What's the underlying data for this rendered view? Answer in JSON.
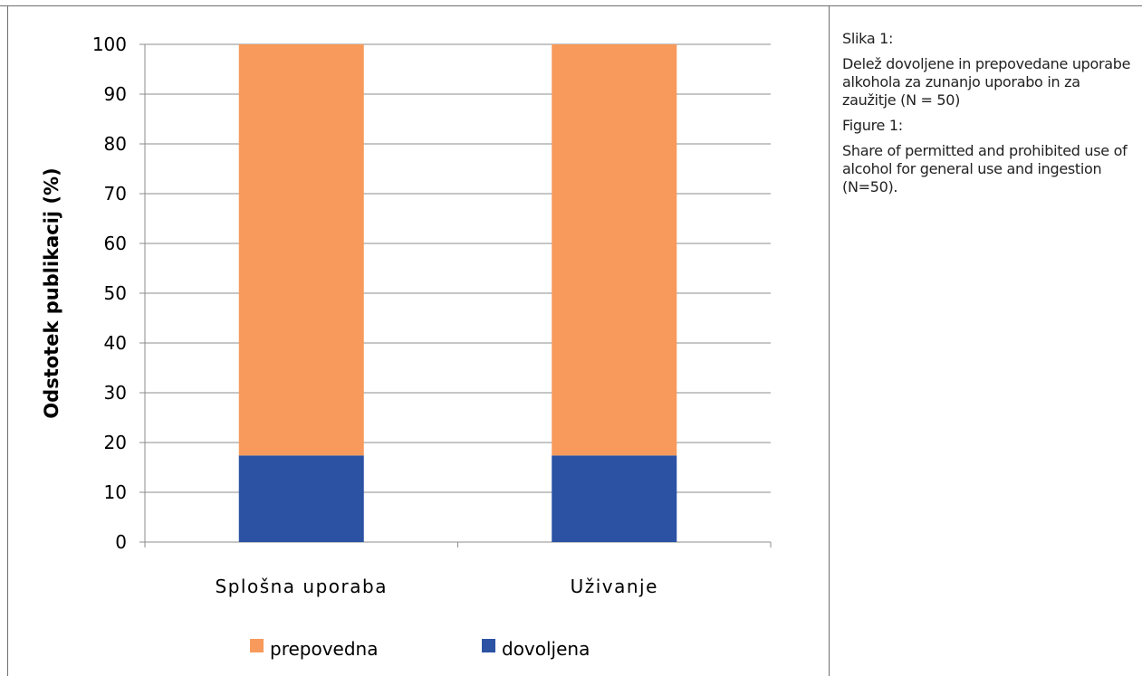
{
  "chart_data": {
    "type": "bar",
    "stacked": true,
    "categories": [
      "Splošna uporaba",
      "Uživanje"
    ],
    "series": [
      {
        "name": "dovoljena",
        "values": [
          17.4,
          17.4
        ],
        "color": "#2B52A3"
      },
      {
        "name": "prepovedna",
        "values": [
          82.6,
          82.6
        ],
        "color": "#F79A5C"
      }
    ],
    "ylabel": "Odstotek publikacij (%)",
    "xlabel": "",
    "ylim": [
      0,
      100
    ],
    "yticks": [
      0,
      10,
      20,
      30,
      40,
      50,
      60,
      70,
      80,
      90,
      100
    ],
    "grid": true,
    "legend_position": "bottom",
    "legend_order": [
      "prepovedna",
      "dovoljena"
    ]
  },
  "caption": {
    "label_sl": "Slika 1:",
    "text_sl": "Delež dovoljene in prepovedane uporabe alkohola za zunanjo uporabo in za zaužitje (N = 50)",
    "label_en": "Figure 1:",
    "text_en": "Share of permitted and prohibited use of alcohol for general use and ingestion (N=50)."
  }
}
